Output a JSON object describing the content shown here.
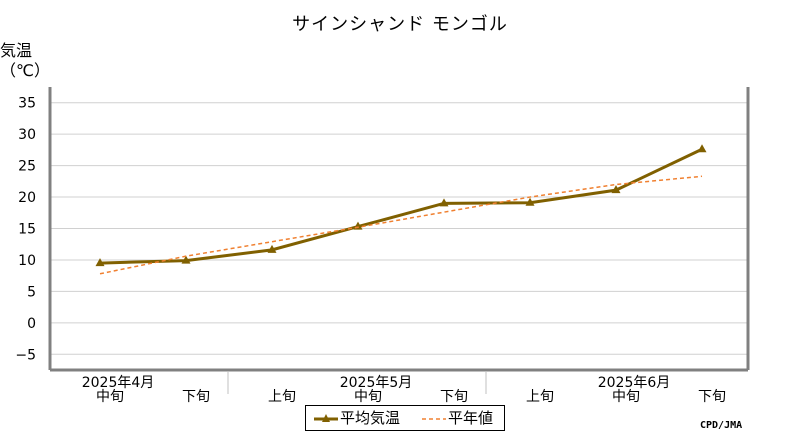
{
  "chart_data": {
    "type": "line",
    "title": "サインシャンド モンゴル",
    "ylabel": [
      "気温",
      "（℃）"
    ],
    "ylim": [
      -7.5,
      37.5
    ],
    "yticks": [
      35,
      30,
      25,
      20,
      15,
      10,
      5,
      0,
      -5
    ],
    "categories": [
      "中旬",
      "下旬",
      "上旬",
      "中旬",
      "下旬",
      "上旬",
      "中旬",
      "下旬"
    ],
    "month_labels": [
      {
        "label": "2025年4月",
        "at": 0
      },
      {
        "label": "2025年5月",
        "at": 3
      },
      {
        "label": "2025年6月",
        "at": 6
      }
    ],
    "series": [
      {
        "name": "平均気温",
        "color": "#806000",
        "style": "solid-triangle",
        "values": [
          9.5,
          9.9,
          11.6,
          15.3,
          19.0,
          19.1,
          21.1,
          27.6
        ]
      },
      {
        "name": "平年値",
        "color": "#f08030",
        "style": "dashed",
        "values": [
          7.8,
          10.6,
          12.9,
          15.2,
          17.6,
          20.0,
          22.0,
          23.3
        ]
      }
    ],
    "grid": true,
    "legend_position": "bottom"
  },
  "credit": "CPD/JMA"
}
